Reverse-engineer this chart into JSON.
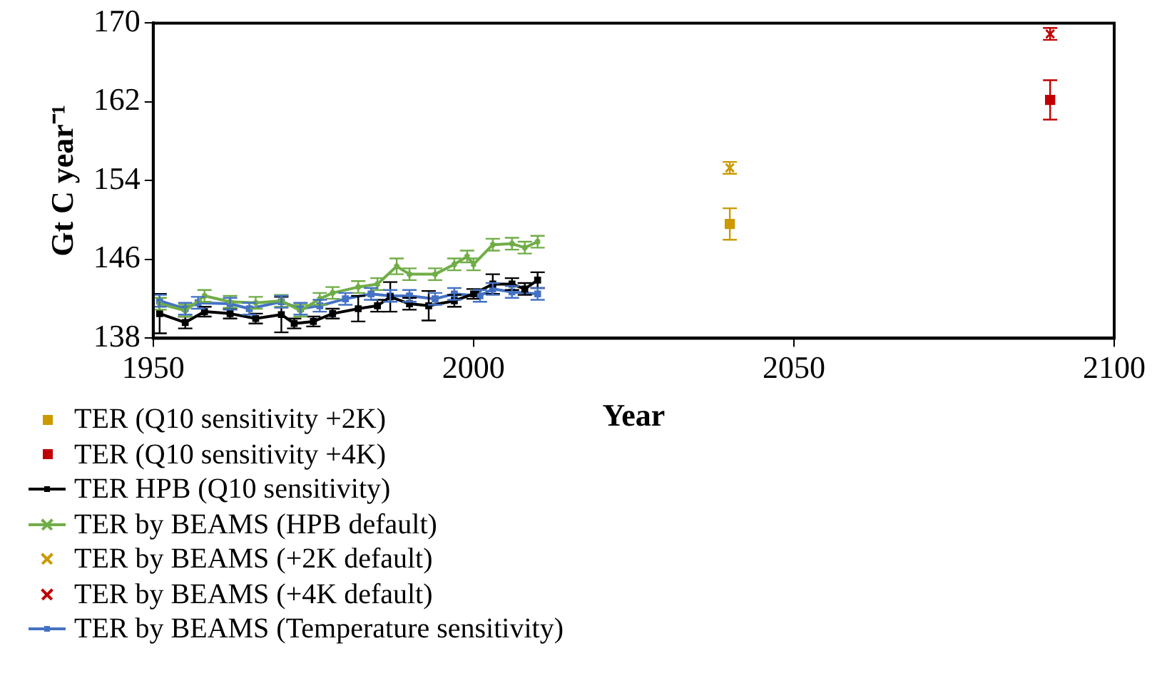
{
  "chart_data": {
    "type": "line",
    "xlabel": "Year",
    "ylabel": "Gt C year⁻¹",
    "xlim": [
      1950,
      2100
    ],
    "xticks": [
      1950,
      2000,
      2050,
      2100
    ],
    "ylim": [
      138,
      170
    ],
    "yticks": [
      138,
      146,
      154,
      162,
      170
    ],
    "grid": false,
    "legend": "bottom left",
    "series": [
      {
        "type": "scatter",
        "marker": "square",
        "name": "TER (Q10 sensitivity +2K)",
        "color": "#cc9900",
        "x": [
          2040
        ],
        "values": [
          149.6
        ],
        "errors": [
          1.6
        ]
      },
      {
        "type": "scatter",
        "marker": "square",
        "name": "TER (Q10 sensitivity +4K)",
        "color": "#c00000",
        "x": [
          2090
        ],
        "values": [
          162.2
        ],
        "errors": [
          2
        ]
      },
      {
        "type": "line",
        "marker": "square",
        "name": "TER HPB (Q10 sensitivity)",
        "color": "#000000",
        "x": [
          1951,
          1955,
          1958,
          1962,
          1966,
          1970,
          1972,
          1975,
          1978,
          1982,
          1985,
          1987,
          1990,
          1993,
          1997,
          2000,
          2003,
          2006,
          2008,
          2010
        ],
        "values": [
          140.5,
          139.6,
          140.7,
          140.5,
          140,
          140.4,
          139.5,
          139.7,
          140.5,
          141,
          141.3,
          142.2,
          141.5,
          141.3,
          141.8,
          142.5,
          143.5,
          143.5,
          143,
          143.9
        ],
        "errors": [
          2,
          0.6,
          0.5,
          0.5,
          0.5,
          1.8,
          0.5,
          0.5,
          0.5,
          1.3,
          0.6,
          1.5,
          0.6,
          1.5,
          0.6,
          0.5,
          1,
          0.6,
          0.6,
          0.8
        ]
      },
      {
        "type": "line",
        "marker": "cross",
        "name": "TER by BEAMS (HPB default)",
        "color": "#70ad47",
        "x": [
          1951,
          1955,
          1958,
          1962,
          1966,
          1970,
          1973,
          1976,
          1978,
          1982,
          1985,
          1988,
          1990,
          1994,
          1997,
          1999,
          2000,
          2003,
          2006,
          2008,
          2010
        ],
        "values": [
          141.5,
          140.8,
          142.3,
          141.7,
          141.6,
          141.8,
          140.8,
          142,
          142.6,
          143.2,
          143.5,
          145.3,
          144.5,
          144.5,
          145.5,
          146.3,
          145.5,
          147.5,
          147.6,
          147.2,
          147.8
        ],
        "errors": [
          0.6,
          0.6,
          0.6,
          0.6,
          0.6,
          0.6,
          0.6,
          0.6,
          0.6,
          0.6,
          0.6,
          0.8,
          0.6,
          0.6,
          0.6,
          0.6,
          0.6,
          0.6,
          0.6,
          0.6,
          0.6
        ]
      },
      {
        "type": "scatter",
        "marker": "cross",
        "name": "TER by BEAMS (+2K default)",
        "color": "#cc9900",
        "x": [
          2040
        ],
        "values": [
          155.3
        ],
        "errors": [
          0.6
        ]
      },
      {
        "type": "scatter",
        "marker": "cross",
        "name": "TER by BEAMS (+4K default)",
        "color": "#c00000",
        "x": [
          2090
        ],
        "values": [
          168.9
        ],
        "errors": [
          0.6
        ]
      },
      {
        "type": "line",
        "marker": "square",
        "name": "TER by BEAMS (Temperature sensitivity)",
        "color": "#4472c4",
        "x": [
          1951,
          1955,
          1957,
          1962,
          1965,
          1970,
          1973,
          1976,
          1980,
          1984,
          1987,
          1990,
          1994,
          1997,
          2001,
          2003,
          2006,
          2010
        ],
        "values": [
          141.8,
          141,
          141.6,
          141.5,
          141,
          141.7,
          141,
          141.3,
          142,
          142.5,
          142.3,
          142.3,
          142,
          142.5,
          142.3,
          143,
          142.7,
          142.5
        ],
        "errors": [
          0.6,
          0.6,
          0.6,
          0.6,
          0.6,
          0.6,
          0.6,
          0.6,
          0.6,
          0.6,
          0.6,
          0.6,
          0.6,
          0.6,
          0.6,
          0.6,
          0.6,
          0.6
        ]
      }
    ]
  }
}
